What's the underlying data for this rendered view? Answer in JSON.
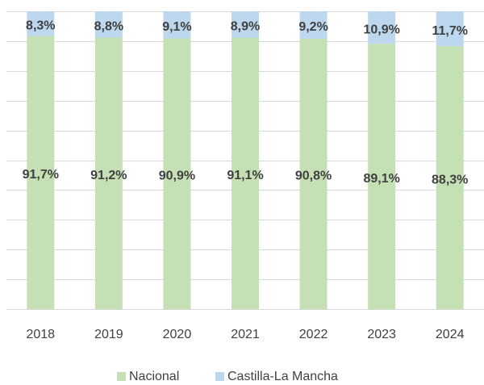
{
  "chart_data": {
    "type": "stacked_bar",
    "categories": [
      "2018",
      "2019",
      "2020",
      "2021",
      "2022",
      "2023",
      "2024"
    ],
    "series": [
      {
        "name": "Nacional",
        "color": "#c5e0b4",
        "values": [
          91.7,
          91.2,
          90.9,
          91.1,
          90.8,
          89.1,
          88.3
        ],
        "value_labels": [
          "91,7%",
          "91,2%",
          "90,9%",
          "91,1%",
          "90,8%",
          "89,1%",
          "88,3%"
        ]
      },
      {
        "name": "Castilla-La Mancha",
        "color": "#bdd7ee",
        "values": [
          8.3,
          8.8,
          9.1,
          8.9,
          9.2,
          10.9,
          11.7
        ],
        "value_labels": [
          "8,3%",
          "8,8%",
          "9,1%",
          "8,9%",
          "9,2%",
          "10,9%",
          "11,7%"
        ]
      }
    ],
    "ylim": [
      0,
      100
    ],
    "yticks": [
      0,
      10,
      20,
      30,
      40,
      50,
      60,
      70,
      80,
      90,
      100
    ],
    "grid": true,
    "legend": "bottom"
  }
}
